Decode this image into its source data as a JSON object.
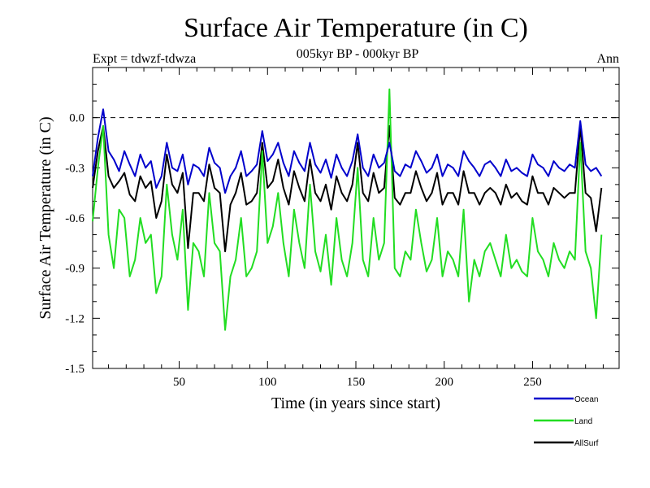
{
  "chart_data": {
    "type": "line",
    "title": "Surface Air Temperature (in C)",
    "subtitle": "005kyr BP - 000kyr BP",
    "left_label": "Expt = tdwzf-tdwza",
    "right_label": "Ann",
    "xlabel": "Time (in years since start)",
    "ylabel": "Surface Air Temperature (in C)",
    "xlim": [
      1,
      299
    ],
    "ylim": [
      -1.5,
      0.3
    ],
    "x_ticks": [
      50,
      100,
      150,
      200,
      250
    ],
    "y_ticks": [
      0.0,
      -0.3,
      -0.6,
      -0.9,
      -1.2,
      -1.5
    ],
    "y_tick_labels": [
      "0.0",
      "-0.3",
      "-0.6",
      "-0.9",
      "-1.2",
      "-1.5"
    ],
    "reference_line": 0.0,
    "x_start": 1,
    "x_step": 3,
    "legend_position": "below-right",
    "series": [
      {
        "name": "Ocean",
        "color": "#0000cc",
        "values": [
          -0.35,
          -0.12,
          0.05,
          -0.2,
          -0.25,
          -0.32,
          -0.2,
          -0.28,
          -0.35,
          -0.22,
          -0.3,
          -0.26,
          -0.42,
          -0.35,
          -0.15,
          -0.3,
          -0.32,
          -0.22,
          -0.4,
          -0.28,
          -0.3,
          -0.35,
          -0.18,
          -0.27,
          -0.3,
          -0.45,
          -0.35,
          -0.3,
          -0.2,
          -0.35,
          -0.32,
          -0.28,
          -0.08,
          -0.26,
          -0.22,
          -0.15,
          -0.27,
          -0.35,
          -0.2,
          -0.27,
          -0.32,
          -0.15,
          -0.28,
          -0.33,
          -0.25,
          -0.36,
          -0.22,
          -0.3,
          -0.35,
          -0.26,
          -0.1,
          -0.3,
          -0.35,
          -0.22,
          -0.3,
          -0.27,
          -0.15,
          -0.32,
          -0.35,
          -0.28,
          -0.3,
          -0.2,
          -0.26,
          -0.33,
          -0.3,
          -0.22,
          -0.35,
          -0.28,
          -0.3,
          -0.35,
          -0.2,
          -0.26,
          -0.3,
          -0.35,
          -0.28,
          -0.26,
          -0.3,
          -0.35,
          -0.25,
          -0.32,
          -0.3,
          -0.33,
          -0.35,
          -0.22,
          -0.28,
          -0.3,
          -0.35,
          -0.26,
          -0.3,
          -0.32,
          -0.28,
          -0.3,
          -0.02,
          -0.28,
          -0.32,
          -0.3,
          -0.35
        ]
      },
      {
        "name": "Land",
        "color": "#22dd22",
        "values": [
          -0.62,
          -0.3,
          -0.05,
          -0.7,
          -0.9,
          -0.55,
          -0.6,
          -0.95,
          -0.85,
          -0.6,
          -0.75,
          -0.7,
          -1.05,
          -0.95,
          -0.4,
          -0.7,
          -0.85,
          -0.55,
          -1.15,
          -0.75,
          -0.8,
          -0.95,
          -0.45,
          -0.75,
          -0.8,
          -1.27,
          -0.95,
          -0.85,
          -0.6,
          -0.95,
          -0.9,
          -0.8,
          -0.2,
          -0.75,
          -0.65,
          -0.45,
          -0.75,
          -0.95,
          -0.55,
          -0.75,
          -0.9,
          -0.4,
          -0.8,
          -0.92,
          -0.7,
          -1.0,
          -0.6,
          -0.85,
          -0.95,
          -0.75,
          -0.3,
          -0.85,
          -0.95,
          -0.6,
          -0.85,
          -0.75,
          0.17,
          -0.9,
          -0.95,
          -0.8,
          -0.85,
          -0.55,
          -0.75,
          -0.92,
          -0.85,
          -0.6,
          -0.95,
          -0.8,
          -0.85,
          -0.95,
          -0.55,
          -1.1,
          -0.85,
          -0.95,
          -0.8,
          -0.75,
          -0.85,
          -0.95,
          -0.7,
          -0.9,
          -0.85,
          -0.92,
          -0.95,
          -0.6,
          -0.8,
          -0.85,
          -0.95,
          -0.75,
          -0.85,
          -0.9,
          -0.8,
          -0.85,
          -0.15,
          -0.8,
          -0.9,
          -1.2,
          -0.7
        ]
      },
      {
        "name": "AllSurf",
        "color": "#000000",
        "values": [
          -0.42,
          -0.2,
          -0.05,
          -0.35,
          -0.42,
          -0.38,
          -0.33,
          -0.46,
          -0.5,
          -0.35,
          -0.42,
          -0.38,
          -0.6,
          -0.5,
          -0.22,
          -0.4,
          -0.45,
          -0.33,
          -0.78,
          -0.45,
          -0.45,
          -0.5,
          -0.28,
          -0.42,
          -0.45,
          -0.8,
          -0.52,
          -0.45,
          -0.33,
          -0.52,
          -0.5,
          -0.45,
          -0.15,
          -0.42,
          -0.38,
          -0.25,
          -0.42,
          -0.52,
          -0.32,
          -0.42,
          -0.5,
          -0.25,
          -0.45,
          -0.5,
          -0.4,
          -0.55,
          -0.35,
          -0.45,
          -0.5,
          -0.4,
          -0.15,
          -0.45,
          -0.5,
          -0.33,
          -0.45,
          -0.42,
          -0.05,
          -0.48,
          -0.52,
          -0.45,
          -0.45,
          -0.32,
          -0.42,
          -0.5,
          -0.45,
          -0.33,
          -0.52,
          -0.45,
          -0.45,
          -0.52,
          -0.32,
          -0.45,
          -0.45,
          -0.52,
          -0.45,
          -0.42,
          -0.45,
          -0.52,
          -0.4,
          -0.48,
          -0.45,
          -0.5,
          -0.52,
          -0.35,
          -0.45,
          -0.45,
          -0.52,
          -0.42,
          -0.45,
          -0.48,
          -0.45,
          -0.45,
          -0.05,
          -0.45,
          -0.48,
          -0.68,
          -0.42
        ]
      }
    ]
  }
}
